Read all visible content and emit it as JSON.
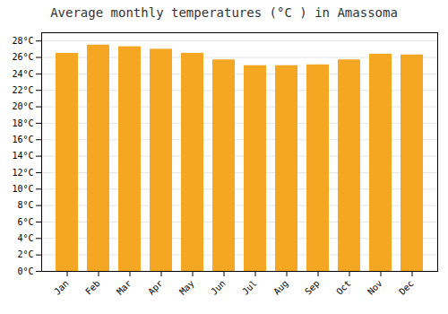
{
  "chart_data": {
    "type": "bar",
    "title": "Average monthly temperatures (°C ) in Amassoma",
    "categories": [
      "Jan",
      "Feb",
      "Mar",
      "Apr",
      "May",
      "Jun",
      "Jul",
      "Aug",
      "Sep",
      "Oct",
      "Nov",
      "Dec"
    ],
    "values": [
      26.5,
      27.5,
      27.3,
      27.0,
      26.5,
      25.7,
      25.0,
      25.0,
      25.1,
      25.7,
      26.4,
      26.3
    ],
    "color": "#F5A623",
    "ylim": [
      0,
      29
    ],
    "yticks": [
      {
        "value": 0,
        "label": "0°C"
      },
      {
        "value": 2,
        "label": "2°C"
      },
      {
        "value": 4,
        "label": "4°C"
      },
      {
        "value": 6,
        "label": "6°C"
      },
      {
        "value": 8,
        "label": "8°C"
      },
      {
        "value": 10,
        "label": "10°C"
      },
      {
        "value": 12,
        "label": "12°C"
      },
      {
        "value": 14,
        "label": "14°C"
      },
      {
        "value": 16,
        "label": "16°C"
      },
      {
        "value": 18,
        "label": "18°C"
      },
      {
        "value": 20,
        "label": "20°C"
      },
      {
        "value": 22,
        "label": "22°C"
      },
      {
        "value": 24,
        "label": "24°C"
      },
      {
        "value": 26,
        "label": "26°C"
      },
      {
        "value": 28,
        "label": "28°C"
      }
    ],
    "grid": true
  }
}
